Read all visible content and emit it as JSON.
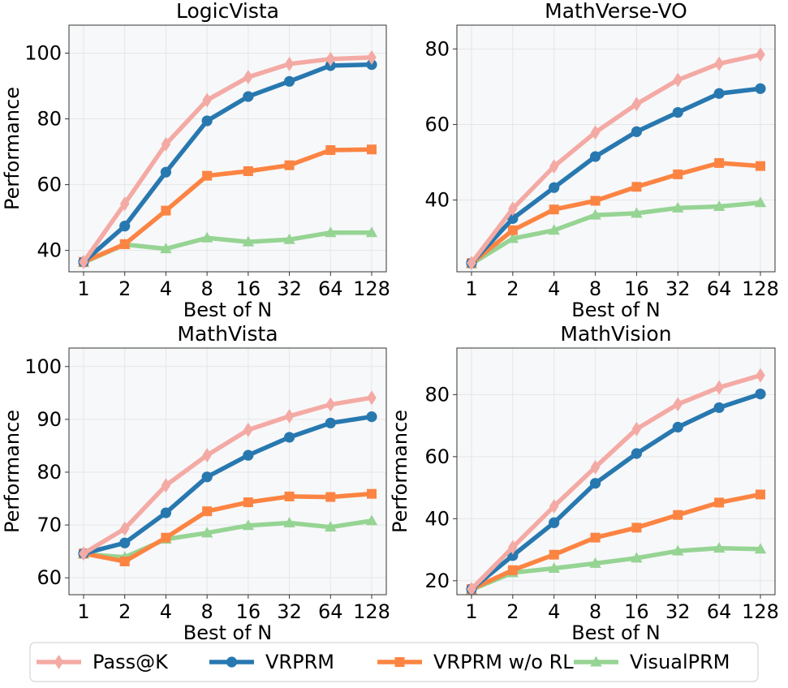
{
  "legend": {
    "position": "bottom-center",
    "entries": [
      {
        "name": "Pass@K",
        "color": "#f4aaa4",
        "marker": "diamond"
      },
      {
        "name": "VRPRM",
        "color": "#2878b0",
        "marker": "circle"
      },
      {
        "name": "VRPRM w/o RL",
        "color": "#fc8442",
        "marker": "square"
      },
      {
        "name": "VisualPRM",
        "color": "#96d494",
        "marker": "triangle"
      }
    ]
  },
  "chart_data": [
    {
      "type": "line",
      "title": "LogicVista",
      "xlabel": "Best of N",
      "ylabel": "Performance",
      "categories": [
        "1",
        "2",
        "4",
        "8",
        "16",
        "32",
        "64",
        "128"
      ],
      "ylim": [
        33.5,
        108.5
      ],
      "yticks": [
        40,
        60,
        80,
        100
      ],
      "grid": true,
      "series": [
        {
          "name": "Pass@K",
          "values": [
            36.5,
            54.2,
            72.3,
            85.7,
            92.7,
            96.7,
            98.2,
            98.7
          ]
        },
        {
          "name": "VRPRM",
          "values": [
            36.5,
            47.4,
            63.8,
            79.4,
            86.8,
            91.4,
            96.2,
            96.5
          ]
        },
        {
          "name": "VRPRM w/o RL",
          "values": [
            36.5,
            41.9,
            52.1,
            62.7,
            64.1,
            65.9,
            70.5,
            70.7
          ]
        },
        {
          "name": "VisualPRM",
          "values": [
            36.3,
            41.8,
            40.5,
            43.8,
            42.6,
            43.3,
            45.4,
            45.4
          ]
        }
      ]
    },
    {
      "type": "line",
      "title": "MathVerse-VO",
      "xlabel": "Best of N",
      "ylabel": "",
      "categories": [
        "1",
        "2",
        "4",
        "8",
        "16",
        "32",
        "64",
        "128"
      ],
      "ylim": [
        21.0,
        86.3
      ],
      "yticks": [
        40,
        60,
        80
      ],
      "grid": true,
      "series": [
        {
          "name": "Pass@K",
          "values": [
            23.3,
            37.7,
            48.9,
            57.9,
            65.4,
            71.8,
            76.1,
            78.5
          ]
        },
        {
          "name": "VRPRM",
          "values": [
            23.3,
            35.1,
            43.3,
            51.5,
            58.1,
            63.2,
            68.2,
            69.5
          ]
        },
        {
          "name": "VRPRM w/o RL",
          "values": [
            23.3,
            32.0,
            37.5,
            39.8,
            43.5,
            46.8,
            49.8,
            49.0
          ]
        },
        {
          "name": "VisualPRM",
          "values": [
            23.1,
            29.8,
            32.0,
            36.0,
            36.5,
            37.9,
            38.3,
            39.3
          ]
        }
      ]
    },
    {
      "type": "line",
      "title": "MathVista",
      "xlabel": "Best of N",
      "ylabel": "Performance",
      "categories": [
        "1",
        "2",
        "4",
        "8",
        "16",
        "32",
        "64",
        "128"
      ],
      "ylim": [
        56.8,
        103.5
      ],
      "yticks": [
        60,
        70,
        80,
        90,
        100
      ],
      "grid": true,
      "series": [
        {
          "name": "Pass@K",
          "values": [
            64.6,
            69.3,
            77.5,
            83.2,
            88.0,
            90.6,
            92.8,
            94.1
          ]
        },
        {
          "name": "VRPRM",
          "values": [
            64.6,
            66.6,
            72.3,
            79.1,
            83.2,
            86.6,
            89.3,
            90.5
          ]
        },
        {
          "name": "VRPRM w/o RL",
          "values": [
            64.6,
            63.1,
            67.6,
            72.6,
            74.3,
            75.4,
            75.3,
            75.9
          ]
        },
        {
          "name": "VisualPRM",
          "values": [
            64.5,
            63.9,
            67.3,
            68.5,
            69.9,
            70.4,
            69.6,
            70.8
          ]
        }
      ]
    },
    {
      "type": "line",
      "title": "MathVision",
      "xlabel": "Best of N",
      "ylabel": "Performance",
      "categories": [
        "1",
        "2",
        "4",
        "8",
        "16",
        "32",
        "64",
        "128"
      ],
      "ylim": [
        15.5,
        95.0
      ],
      "yticks": [
        20,
        40,
        60,
        80
      ],
      "grid": true,
      "series": [
        {
          "name": "Pass@K",
          "values": [
            17.3,
            30.8,
            44.0,
            56.6,
            68.9,
            76.9,
            82.3,
            86.2
          ]
        },
        {
          "name": "VRPRM",
          "values": [
            17.3,
            28.1,
            38.7,
            51.4,
            61.0,
            69.5,
            75.8,
            80.2
          ]
        },
        {
          "name": "VRPRM w/o RL",
          "values": [
            17.3,
            23.4,
            28.4,
            33.9,
            37.1,
            41.2,
            45.2,
            47.8
          ]
        },
        {
          "name": "VisualPRM",
          "values": [
            17.1,
            22.6,
            24.0,
            25.6,
            27.3,
            29.6,
            30.5,
            30.2
          ]
        }
      ]
    }
  ]
}
